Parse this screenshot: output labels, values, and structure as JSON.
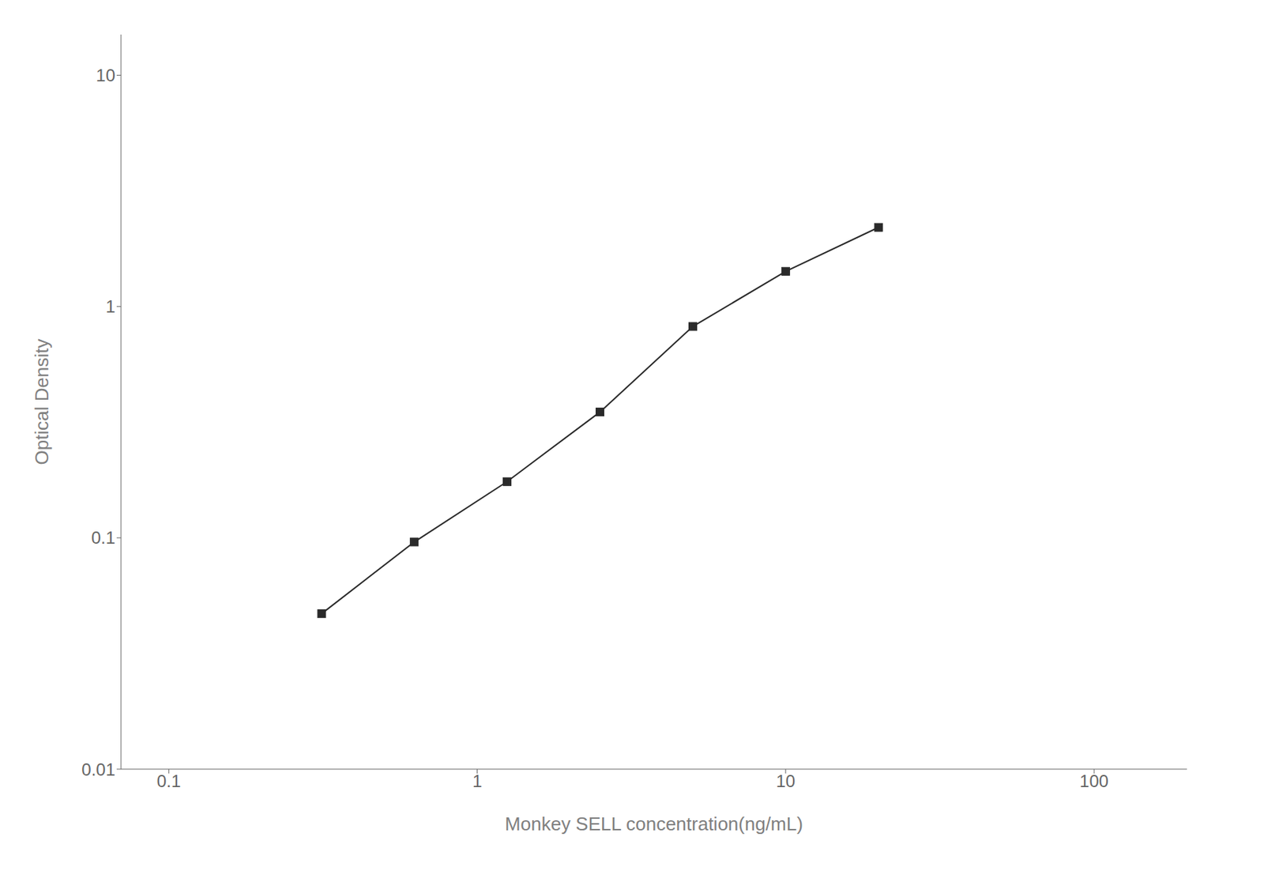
{
  "chart_data": {
    "type": "line",
    "x": [
      0.313,
      0.625,
      1.25,
      2.5,
      5.0,
      10.0,
      20.0
    ],
    "values": [
      0.047,
      0.096,
      0.175,
      0.35,
      0.82,
      1.42,
      2.2
    ],
    "xlabel": "Monkey SELL concentration(ng/mL)",
    "ylabel": "Optical Density",
    "xlim": [
      0.07,
      200
    ],
    "ylim": [
      0.01,
      15
    ],
    "xticks": [
      0.1,
      1,
      10,
      100
    ],
    "yticks": [
      0.01,
      0.1,
      1,
      10
    ],
    "log": true,
    "grid": false,
    "color": "#2a2a2a",
    "marker": "square"
  }
}
